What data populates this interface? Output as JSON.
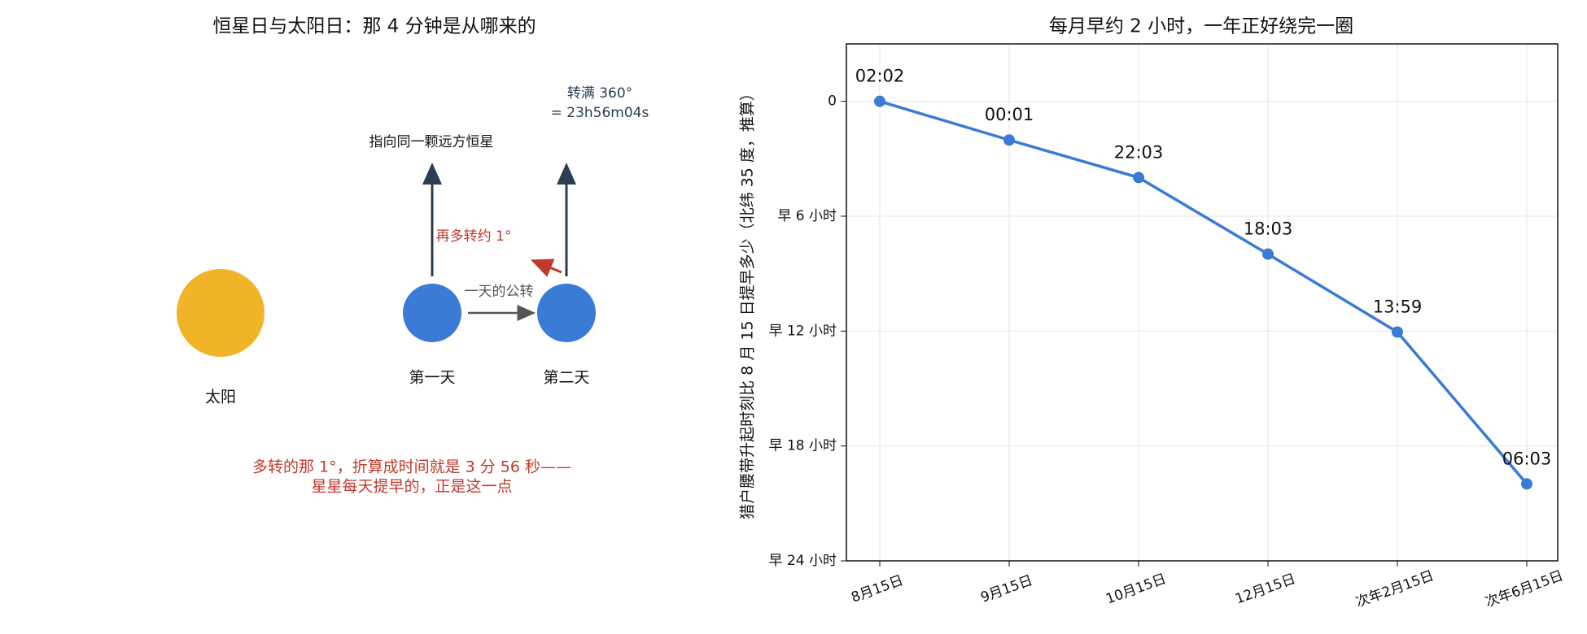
{
  "diagram": {
    "title": "恒星日与太阳日：那 4 分钟是从哪来的",
    "sun_label": "太阳",
    "day1_label": "第一天",
    "day2_label": "第二天",
    "star_label": "指向同一颗远方恒星",
    "full_turn_line1": "转满 360°",
    "full_turn_line2": "= 23h56m04s",
    "extra_turn_label": "再多转约 1°",
    "orbit_label": "一天的公转",
    "note_line1": "多转的那 1°，折算成时间就是 3 分 56 秒——",
    "note_line2": "星星每天提早的，正是这一点"
  },
  "chart_data": {
    "type": "line",
    "title": "每月早约 2 小时，一年正好绕完一圈",
    "y_label": "猎户腰带升起时刻比 8 月 15 日提早多少（北纬 35 度，推算）",
    "categories": [
      "8月15日",
      "9月15日",
      "10月15日",
      "12月15日",
      "次年2月15日",
      "次年6月15日"
    ],
    "values": [
      0,
      2.02,
      3.98,
      7.98,
      12.05,
      19.98
    ],
    "point_labels": [
      "02:02",
      "00:01",
      "22:03",
      "18:03",
      "13:59",
      "06:03"
    ],
    "color": "#3a7bd5",
    "ylim": [
      -3,
      24
    ],
    "y_inverted": true,
    "yticks": [
      0,
      {
        "value": 6,
        "label": "早 6 小时"
      },
      {
        "value": 12,
        "label": "早 12 小时"
      },
      {
        "value": 18,
        "label": "早 18 小时"
      },
      {
        "value": 24,
        "label": "早 24 小时"
      }
    ],
    "grid": true
  }
}
